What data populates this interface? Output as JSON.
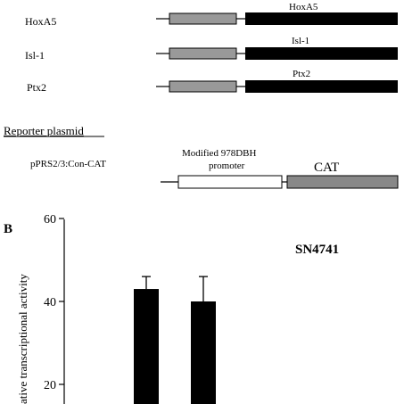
{
  "panel_a": {
    "constructs": [
      {
        "left_label": "HoxA5",
        "bar_label": "HoxA5"
      },
      {
        "left_label": "Isl-1",
        "bar_label": "Isl-1"
      },
      {
        "left_label": "Ptx2",
        "bar_label": "Ptx2"
      }
    ],
    "reporter_heading": "Reporter plasmid",
    "reporter_name": "pPRS2/3:Con-CAT",
    "promoter_label_line1": "Modified 978DBH",
    "promoter_label_line2": "promoter",
    "cat_label": "CAT",
    "colors": {
      "grey_box": "#999999",
      "black_box": "#000000",
      "cat_box": "#888888"
    }
  },
  "panel_b": {
    "panel_letter": "B",
    "cell_line_label": "SN4741",
    "ylabel_visible": "ative transcriptional activity",
    "chart_data": {
      "type": "bar",
      "ylim": [
        0,
        60
      ],
      "yticks": [
        {
          "value": 20,
          "label": "20"
        },
        {
          "value": 40,
          "label": "40"
        },
        {
          "value": 60,
          "label": "60"
        }
      ],
      "values": [
        43,
        40
      ],
      "errors": [
        3,
        6
      ],
      "bar_color": "#000000"
    }
  }
}
